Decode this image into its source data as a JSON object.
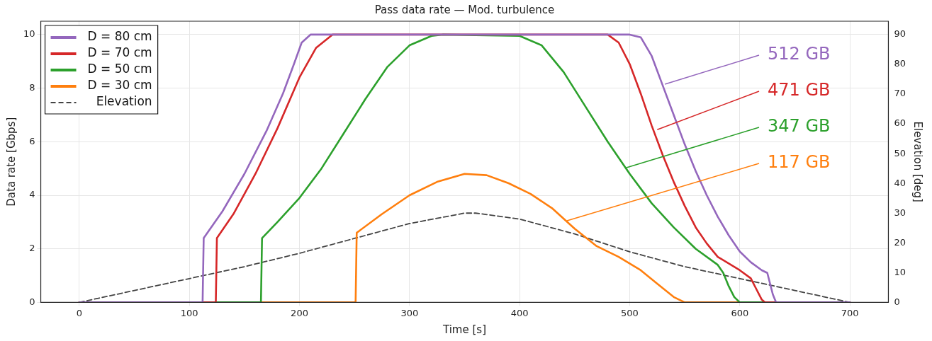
{
  "chart_data": {
    "type": "line",
    "title": "Pass data rate — Mod. turbulence",
    "xlabel": "Time [s]",
    "ylabel": "Data rate [Gbps]",
    "y2label": "Elevation [deg]",
    "xlim": [
      -35,
      735
    ],
    "xticks": [
      0,
      100,
      200,
      300,
      400,
      500,
      600,
      700
    ],
    "ylim": [
      0,
      10.5
    ],
    "yticks": [
      0,
      2,
      4,
      6,
      8,
      10
    ],
    "y2lim": [
      0,
      94.5
    ],
    "y2ticks": [
      0,
      10,
      20,
      30,
      40,
      50,
      60,
      70,
      80,
      90
    ],
    "grid": true,
    "legend": "top left",
    "marker": "none",
    "series": [
      {
        "name": "D = 80 cm",
        "color": "#9467bd",
        "x": [
          0,
          112,
          113,
          130,
          150,
          170,
          185,
          195,
          202,
          210,
          500,
          510,
          520,
          530,
          540,
          550,
          560,
          570,
          580,
          590,
          600,
          610,
          620,
          625,
          630,
          633,
          700
        ],
        "values": [
          0,
          0,
          2.4,
          3.4,
          4.8,
          6.4,
          7.8,
          8.9,
          9.7,
          10,
          10,
          9.9,
          9.2,
          8.1,
          7.0,
          5.9,
          4.9,
          4.0,
          3.2,
          2.5,
          1.9,
          1.5,
          1.2,
          1.1,
          0.3,
          0,
          0
        ]
      },
      {
        "name": "D = 70 cm",
        "color": "#d62728",
        "x": [
          0,
          124,
          125,
          140,
          160,
          180,
          200,
          215,
          230,
          480,
          490,
          500,
          510,
          520,
          530,
          540,
          550,
          560,
          570,
          580,
          600,
          610,
          615,
          620,
          623,
          700
        ],
        "values": [
          0,
          0,
          2.4,
          3.3,
          4.8,
          6.5,
          8.4,
          9.5,
          10,
          10,
          9.7,
          8.9,
          7.8,
          6.6,
          5.5,
          4.5,
          3.6,
          2.8,
          2.2,
          1.7,
          1.2,
          0.9,
          0.5,
          0.1,
          0,
          0
        ]
      },
      {
        "name": "D = 50 cm",
        "color": "#2ca02c",
        "x": [
          0,
          165,
          166,
          180,
          200,
          220,
          240,
          260,
          280,
          300,
          320,
          330,
          400,
          420,
          440,
          460,
          480,
          500,
          520,
          540,
          560,
          580,
          585,
          590,
          595,
          600,
          700
        ],
        "values": [
          0,
          0,
          2.4,
          3.0,
          3.9,
          5.0,
          6.3,
          7.6,
          8.8,
          9.6,
          9.95,
          10,
          9.95,
          9.6,
          8.6,
          7.3,
          6.0,
          4.8,
          3.7,
          2.8,
          2.0,
          1.4,
          1.1,
          0.6,
          0.2,
          0,
          0
        ]
      },
      {
        "name": "D = 30 cm",
        "color": "#ff7f0e",
        "x": [
          0,
          251,
          252,
          275,
          300,
          325,
          350,
          370,
          390,
          410,
          430,
          450,
          470,
          490,
          510,
          525,
          540,
          550,
          700
        ],
        "values": [
          0,
          0,
          2.6,
          3.3,
          4.0,
          4.5,
          4.8,
          4.75,
          4.45,
          4.05,
          3.5,
          2.75,
          2.1,
          1.7,
          1.2,
          0.7,
          0.2,
          0,
          0
        ]
      },
      {
        "name": "Elevation",
        "color": "#444444",
        "axis": "y2",
        "line_style": "dashed",
        "x": [
          0,
          50,
          100,
          150,
          200,
          250,
          300,
          350,
          360,
          400,
          450,
          500,
          550,
          600,
          650,
          700
        ],
        "values": [
          0,
          4,
          8,
          12,
          16.5,
          21.5,
          26.5,
          30,
          30,
          28,
          23,
          17,
          12,
          8,
          4,
          0
        ]
      }
    ],
    "annotations": [
      {
        "text": "512 GB",
        "x": 532,
        "y": 8.15
      },
      {
        "text": "471 GB",
        "x": 525,
        "y": 6.45
      },
      {
        "text": "347 GB",
        "x": 497,
        "y": 5.03
      },
      {
        "text": "117 GB",
        "x": 443,
        "y": 3.05
      }
    ]
  }
}
